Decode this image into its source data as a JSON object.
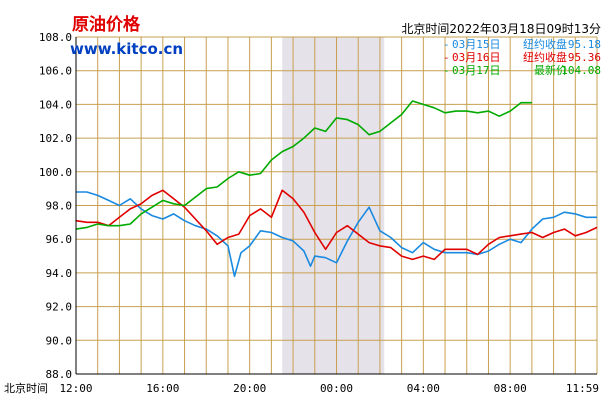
{
  "header": {
    "title": "原油价格",
    "site": "www.kitco.cn",
    "timestamp": "北京时间2022年03月18日09时13分"
  },
  "colors": {
    "background": "#ffffff",
    "grid": "#c8a050",
    "highlight_band": "#e6e2ea",
    "blue": "#1a8ae0",
    "red": "#e00000",
    "green": "#00aa00"
  },
  "legend": [
    {
      "label": "03月15日",
      "status": "纽约收盘",
      "value": "95.18",
      "color": "#1a8ae0"
    },
    {
      "label": "03月16日",
      "status": "纽约收盘",
      "value": "95.36",
      "color": "#e00000"
    },
    {
      "label": "03月17日",
      "status": "最新价",
      "value": "104.08",
      "color": "#00aa00"
    }
  ],
  "chart_data": {
    "type": "line",
    "title": "原油价格",
    "x_axis_name": "北京时间",
    "ylim": [
      88.0,
      108.0
    ],
    "yticks": [
      "88.0",
      "90.0",
      "92.0",
      "94.0",
      "96.0",
      "98.0",
      "100.0",
      "102.0",
      "104.0",
      "106.0",
      "108.0"
    ],
    "xlim_hours": [
      12,
      36
    ],
    "xticks": [
      {
        "label": "12:00",
        "hour": 12
      },
      {
        "label": "16:00",
        "hour": 16
      },
      {
        "label": "20:00",
        "hour": 20
      },
      {
        "label": "00:00",
        "hour": 24
      },
      {
        "label": "04:00",
        "hour": 28
      },
      {
        "label": "08:00",
        "hour": 32
      },
      {
        "label": "11:59",
        "hour": 36
      }
    ],
    "highlight_range_hours": [
      21.5,
      26.2
    ],
    "grid": true,
    "legend_position": "top-right",
    "series": [
      {
        "name": "03月15日",
        "color": "#1a8ae0",
        "x": [
          12,
          12.5,
          13,
          13.5,
          14,
          14.5,
          15,
          15.5,
          16,
          16.5,
          17,
          17.5,
          18,
          18.5,
          19,
          19.3,
          19.6,
          20,
          20.5,
          21,
          21.5,
          22,
          22.5,
          22.8,
          23,
          23.5,
          24,
          24.5,
          25,
          25.5,
          26,
          26.5,
          27,
          27.5,
          28,
          28.5,
          29,
          29.5,
          30,
          30.5,
          31,
          31.5,
          32,
          32.5,
          33,
          33.5,
          34,
          34.5,
          35,
          35.5,
          36
        ],
        "values": [
          98.8,
          98.8,
          98.6,
          98.3,
          98.0,
          98.4,
          97.8,
          97.4,
          97.2,
          97.5,
          97.1,
          96.8,
          96.6,
          96.2,
          95.6,
          93.8,
          95.2,
          95.6,
          96.5,
          96.4,
          96.1,
          95.9,
          95.3,
          94.4,
          95.0,
          94.9,
          94.6,
          95.9,
          97.0,
          97.9,
          96.5,
          96.1,
          95.5,
          95.2,
          95.8,
          95.4,
          95.2,
          95.2,
          95.2,
          95.1,
          95.3,
          95.7,
          96.0,
          95.8,
          96.6,
          97.2,
          97.3,
          97.6,
          97.5,
          97.3,
          97.3
        ]
      },
      {
        "name": "03月16日",
        "color": "#e00000",
        "x": [
          12,
          12.5,
          13,
          13.5,
          14,
          14.5,
          15,
          15.5,
          16,
          16.5,
          17,
          17.5,
          18,
          18.5,
          19,
          19.5,
          20,
          20.5,
          21,
          21.5,
          22,
          22.5,
          23,
          23.5,
          24,
          24.5,
          25,
          25.5,
          26,
          26.5,
          27,
          27.5,
          28,
          28.5,
          29,
          29.5,
          30,
          30.5,
          31,
          31.5,
          32,
          32.5,
          33,
          33.5,
          34,
          34.5,
          35,
          35.5,
          36
        ],
        "values": [
          97.1,
          97.0,
          97.0,
          96.8,
          97.3,
          97.8,
          98.1,
          98.6,
          98.9,
          98.4,
          97.9,
          97.2,
          96.5,
          95.7,
          96.1,
          96.3,
          97.4,
          97.8,
          97.3,
          98.9,
          98.4,
          97.6,
          96.4,
          95.4,
          96.4,
          96.8,
          96.3,
          95.8,
          95.6,
          95.5,
          95.0,
          94.8,
          95.0,
          94.8,
          95.4,
          95.4,
          95.4,
          95.1,
          95.7,
          96.1,
          96.2,
          96.3,
          96.4,
          96.1,
          96.4,
          96.6,
          96.2,
          96.4,
          96.7
        ]
      },
      {
        "name": "03月17日",
        "color": "#00aa00",
        "x": [
          12,
          12.5,
          13,
          13.5,
          14,
          14.5,
          15,
          15.5,
          16,
          16.5,
          17,
          17.5,
          18,
          18.5,
          19,
          19.5,
          20,
          20.5,
          21,
          21.5,
          22,
          22.5,
          23,
          23.5,
          24,
          24.5,
          25,
          25.5,
          26,
          26.5,
          27,
          27.5,
          28,
          28.5,
          29,
          29.5,
          30,
          30.5,
          31,
          31.5,
          32,
          32.5,
          33
        ],
        "values": [
          96.6,
          96.7,
          96.9,
          96.8,
          96.8,
          96.9,
          97.5,
          97.9,
          98.3,
          98.1,
          98.0,
          98.5,
          99.0,
          99.1,
          99.6,
          100.0,
          99.8,
          99.9,
          100.7,
          101.2,
          101.5,
          102.0,
          102.6,
          102.4,
          103.2,
          103.1,
          102.8,
          102.2,
          102.4,
          102.9,
          103.4,
          104.2,
          104.0,
          103.8,
          103.5,
          103.6,
          103.6,
          103.5,
          103.6,
          103.3,
          103.6,
          104.1,
          104.1
        ]
      }
    ]
  }
}
